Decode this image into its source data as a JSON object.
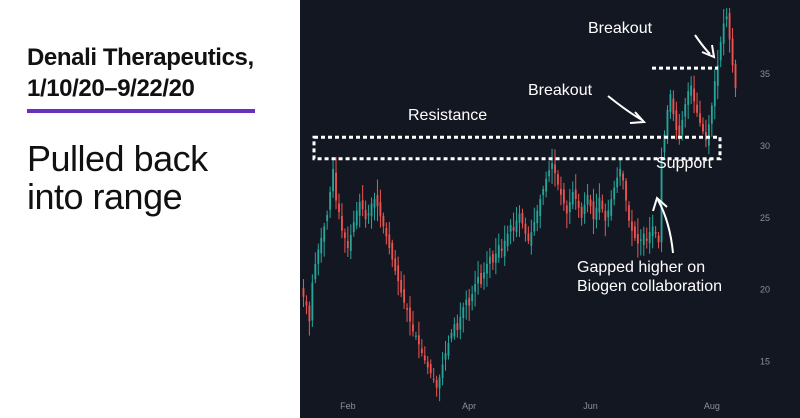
{
  "header": {
    "title_line1": "Denali Therapeutics,",
    "title_line2": "1/10/20–9/22/20",
    "subtitle_line1": "Pulled back",
    "subtitle_line2": "into range"
  },
  "chart_data": {
    "type": "candlestick",
    "x_tick_labels": [
      "Feb",
      "Apr",
      "Jun",
      "Aug"
    ],
    "y_tick_labels": [
      "35",
      "30",
      "25",
      "20",
      "15"
    ],
    "ylim": [
      11.5,
      40
    ],
    "grid": false,
    "annotations": {
      "resistance": "Resistance",
      "support": "Support",
      "breakout_1": "Breakout",
      "breakout_2": "Breakout",
      "gap_line1": "Gapped higher on",
      "gap_line2": "Biogen collaboration"
    },
    "colors": {
      "up": "#26a69a",
      "down": "#ef5350",
      "background": "#131722",
      "annotation": "#ffffff",
      "accent": "#6b2fbf"
    },
    "resistance_zone": [
      29.1,
      30.6
    ],
    "breakout_level": 35.4,
    "closes": [
      19.5,
      18.9,
      17.8,
      20.5,
      21.8,
      22.8,
      23.6,
      24.4,
      25.2,
      26.8,
      28.4,
      26.2,
      25.4,
      24.1,
      23.6,
      22.9,
      23.8,
      24.7,
      25.5,
      26.1,
      25.6,
      24.9,
      25.3,
      26.0,
      26.3,
      25.8,
      25.1,
      24.4,
      23.7,
      22.9,
      22.1,
      21.3,
      20.6,
      19.8,
      19.1,
      18.6,
      17.8,
      17.1,
      16.8,
      16.2,
      15.6,
      15.1,
      14.6,
      14.2,
      13.8,
      13.2,
      13.9,
      14.8,
      15.6,
      16.3,
      17.0,
      17.6,
      17.2,
      18.1,
      18.8,
      19.3,
      18.9,
      19.7,
      20.4,
      20.9,
      20.4,
      21.2,
      21.8,
      22.3,
      21.9,
      22.5,
      23.1,
      22.7,
      23.4,
      23.9,
      24.5,
      24.1,
      24.8,
      25.3,
      24.6,
      23.9,
      23.4,
      24.0,
      24.7,
      25.5,
      26.3,
      27.0,
      27.7,
      28.3,
      28.8,
      28.1,
      27.3,
      26.6,
      26.0,
      25.3,
      26.1,
      26.8,
      26.3,
      25.7,
      25.0,
      25.9,
      26.6,
      25.8,
      24.9,
      25.7,
      26.4,
      25.6,
      24.8,
      25.5,
      26.3,
      27.1,
      27.8,
      28.4,
      27.6,
      26.2,
      24.8,
      24.1,
      23.6,
      23.2,
      23.5,
      23.9,
      23.4,
      24.0,
      24.4,
      23.9,
      23.3,
      29.2,
      30.8,
      32.5,
      33.6,
      32.2,
      31.1,
      30.6,
      31.8,
      32.9,
      33.8,
      34.2,
      33.1,
      32.3,
      31.6,
      31.0,
      30.4,
      31.5,
      32.8,
      34.5,
      35.6,
      37.2,
      38.5,
      39.0,
      37.4,
      35.6,
      34.0
    ]
  }
}
